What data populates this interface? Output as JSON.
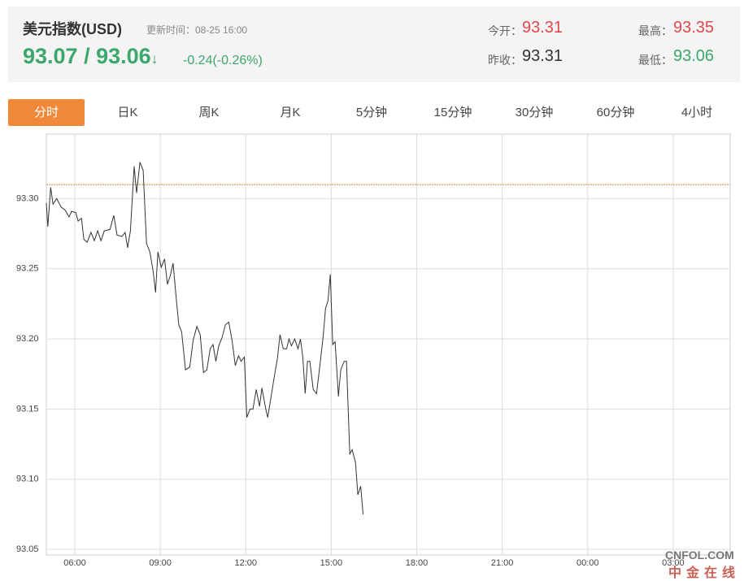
{
  "header": {
    "title": "美元指数(USD)",
    "update": "更新时间：08-25 16:00",
    "price": "93.07 / 93.06",
    "arrow": "↓",
    "change": "-0.24(-0.26%)",
    "open_label": "今开：",
    "open": 93.31,
    "prev_label": "昨收：",
    "prev": 93.31,
    "high_label": "最高：",
    "high": 93.35,
    "low_label": "最低：",
    "low": 93.06
  },
  "tabs": [
    "分时",
    "日K",
    "周K",
    "月K",
    "5分钟",
    "15分钟",
    "30分钟",
    "60分钟",
    "4小时"
  ],
  "watermark": {
    "brand": "CNFOL.COM",
    "name": "中金在线"
  },
  "chart_data": {
    "type": "line",
    "color": "#333333",
    "reference_line": 93.31,
    "reference_color": "#c9822f",
    "grid": true,
    "xlim": [
      "05:00",
      "05:00"
    ],
    "ylim": [
      93.046,
      93.346
    ],
    "xticks": [
      "06:00",
      "09:00",
      "12:00",
      "15:00",
      "18:00",
      "21:00",
      "00:00",
      "03:00"
    ],
    "yticks": [
      93.05,
      {
        "value": 93.1,
        "label": "93.10"
      },
      93.15,
      {
        "value": 93.2,
        "label": "93.20"
      },
      93.25,
      {
        "value": 93.3,
        "label": "93.30"
      }
    ],
    "x": [
      "05:00",
      "05:03",
      "05:09",
      "05:14",
      "05:22",
      "05:31",
      "05:39",
      "05:48",
      "05:53",
      "06:02",
      "06:07",
      "06:14",
      "06:19",
      "06:26",
      "06:34",
      "06:41",
      "06:48",
      "06:55",
      "07:02",
      "07:14",
      "07:22",
      "07:29",
      "07:39",
      "07:46",
      "07:51",
      "07:57",
      "08:05",
      "08:10",
      "08:17",
      "08:24",
      "08:31",
      "08:38",
      "08:45",
      "08:50",
      "08:55",
      "09:02",
      "09:09",
      "09:15",
      "09:21",
      "09:27",
      "09:33",
      "09:39",
      "09:45",
      "09:53",
      "10:02",
      "10:09",
      "10:17",
      "10:24",
      "10:31",
      "10:38",
      "10:45",
      "10:51",
      "10:57",
      "11:03",
      "11:10",
      "11:17",
      "11:24",
      "11:31",
      "11:38",
      "11:45",
      "11:50",
      "11:57",
      "12:02",
      "12:09",
      "12:15",
      "12:22",
      "12:29",
      "12:34",
      "12:41",
      "12:46",
      "12:53",
      "13:00",
      "13:07",
      "13:12",
      "13:19",
      "13:26",
      "13:31",
      "13:36",
      "13:43",
      "13:50",
      "13:55",
      "14:00",
      "14:05",
      "14:10",
      "14:15",
      "14:22",
      "14:29",
      "14:36",
      "14:43",
      "14:48",
      "14:53",
      "14:58",
      "15:03",
      "15:08",
      "15:15",
      "15:20",
      "15:27",
      "15:32",
      "15:39",
      "15:44",
      "15:51",
      "15:56",
      "16:02",
      "16:07"
    ],
    "values": [
      93.297,
      93.28,
      93.308,
      93.296,
      93.3,
      93.294,
      93.292,
      93.287,
      93.291,
      93.29,
      93.284,
      93.286,
      93.271,
      93.269,
      93.276,
      93.27,
      93.277,
      93.27,
      93.277,
      93.278,
      93.288,
      93.274,
      93.273,
      93.276,
      93.265,
      93.277,
      93.323,
      93.304,
      93.326,
      93.32,
      93.268,
      93.262,
      93.248,
      93.233,
      93.262,
      93.251,
      93.257,
      93.239,
      93.245,
      93.254,
      93.231,
      93.21,
      93.205,
      93.178,
      93.18,
      93.199,
      93.209,
      93.203,
      93.176,
      93.178,
      93.193,
      93.196,
      93.184,
      93.195,
      93.201,
      93.21,
      93.212,
      93.199,
      93.181,
      93.188,
      93.184,
      93.187,
      93.144,
      93.15,
      93.15,
      93.164,
      93.152,
      93.165,
      93.152,
      93.144,
      93.158,
      93.173,
      93.187,
      93.203,
      93.193,
      93.193,
      93.2,
      93.195,
      93.2,
      93.193,
      93.2,
      93.187,
      93.161,
      93.184,
      93.184,
      93.164,
      93.161,
      93.181,
      93.202,
      93.222,
      93.227,
      93.246,
      93.196,
      93.198,
      93.159,
      93.178,
      93.184,
      93.184,
      93.118,
      93.121,
      93.112,
      93.089,
      93.095,
      93.075
    ]
  }
}
